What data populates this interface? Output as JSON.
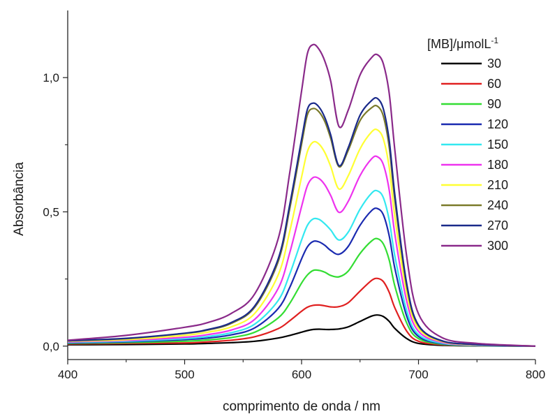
{
  "chart_data": {
    "type": "line",
    "title": "",
    "xlabel": "comprimento de onda / nm",
    "ylabel": "Absorbância",
    "xlim": [
      400,
      800
    ],
    "ylim": [
      -0.05,
      1.25
    ],
    "x_ticks": [
      400,
      500,
      600,
      700,
      800
    ],
    "x_tick_labels": [
      "400",
      "500",
      "600",
      "700",
      "800"
    ],
    "y_ticks": [
      0.0,
      0.5,
      1.0
    ],
    "y_tick_labels": [
      "0,0",
      "0,5",
      "1,0"
    ],
    "grid": false,
    "legend": {
      "title_main": "[MB]/",
      "title_unit": "μmolL",
      "title_sup": "-1",
      "placement": "top-right"
    },
    "x": [
      400,
      450,
      500,
      520,
      540,
      560,
      580,
      590,
      600,
      605,
      610,
      615,
      620,
      625,
      632,
      640,
      650,
      660,
      665,
      670,
      675,
      680,
      690,
      700,
      720,
      750,
      800
    ],
    "series": [
      {
        "name": "30",
        "color": "#000000",
        "values": [
          0.005,
          0.006,
          0.008,
          0.01,
          0.013,
          0.018,
          0.03,
          0.04,
          0.052,
          0.058,
          0.062,
          0.063,
          0.062,
          0.062,
          0.064,
          0.072,
          0.092,
          0.112,
          0.116,
          0.11,
          0.092,
          0.065,
          0.028,
          0.01,
          0.003,
          0.001,
          0.0
        ]
      },
      {
        "name": "60",
        "color": "#e02020",
        "values": [
          0.008,
          0.01,
          0.012,
          0.016,
          0.022,
          0.035,
          0.065,
          0.095,
          0.13,
          0.145,
          0.152,
          0.153,
          0.15,
          0.146,
          0.147,
          0.162,
          0.205,
          0.245,
          0.252,
          0.24,
          0.2,
          0.14,
          0.055,
          0.018,
          0.005,
          0.002,
          0.0
        ]
      },
      {
        "name": "90",
        "color": "#33dd33",
        "values": [
          0.01,
          0.013,
          0.018,
          0.023,
          0.032,
          0.052,
          0.105,
          0.16,
          0.235,
          0.265,
          0.282,
          0.282,
          0.275,
          0.263,
          0.258,
          0.28,
          0.345,
          0.392,
          0.4,
          0.38,
          0.32,
          0.22,
          0.085,
          0.028,
          0.007,
          0.002,
          0.0
        ]
      },
      {
        "name": "120",
        "color": "#1a2ab0",
        "values": [
          0.012,
          0.016,
          0.024,
          0.03,
          0.042,
          0.068,
          0.14,
          0.22,
          0.325,
          0.37,
          0.39,
          0.388,
          0.375,
          0.356,
          0.342,
          0.372,
          0.45,
          0.505,
          0.512,
          0.488,
          0.41,
          0.285,
          0.11,
          0.036,
          0.009,
          0.003,
          0.0
        ]
      },
      {
        "name": "150",
        "color": "#33e8f0",
        "values": [
          0.014,
          0.018,
          0.028,
          0.036,
          0.05,
          0.082,
          0.17,
          0.27,
          0.395,
          0.45,
          0.474,
          0.472,
          0.455,
          0.432,
          0.395,
          0.425,
          0.51,
          0.57,
          0.578,
          0.552,
          0.468,
          0.33,
          0.13,
          0.043,
          0.011,
          0.003,
          0.0
        ]
      },
      {
        "name": "180",
        "color": "#ee33ee",
        "values": [
          0.016,
          0.021,
          0.033,
          0.043,
          0.06,
          0.1,
          0.215,
          0.35,
          0.52,
          0.598,
          0.628,
          0.624,
          0.6,
          0.56,
          0.498,
          0.54,
          0.635,
          0.698,
          0.705,
          0.675,
          0.58,
          0.41,
          0.165,
          0.055,
          0.014,
          0.004,
          0.0
        ]
      },
      {
        "name": "210",
        "color": "#ffff33",
        "values": [
          0.018,
          0.024,
          0.04,
          0.052,
          0.072,
          0.122,
          0.265,
          0.43,
          0.63,
          0.725,
          0.76,
          0.752,
          0.72,
          0.668,
          0.585,
          0.635,
          0.735,
          0.798,
          0.805,
          0.77,
          0.665,
          0.475,
          0.195,
          0.066,
          0.017,
          0.005,
          0.0
        ]
      },
      {
        "name": "240",
        "color": "#7a7a2a",
        "values": [
          0.02,
          0.028,
          0.047,
          0.06,
          0.085,
          0.145,
          0.315,
          0.515,
          0.752,
          0.862,
          0.885,
          0.872,
          0.835,
          0.772,
          0.668,
          0.73,
          0.84,
          0.888,
          0.893,
          0.855,
          0.74,
          0.535,
          0.22,
          0.075,
          0.019,
          0.006,
          0.0
        ]
      },
      {
        "name": "270",
        "color": "#1a2a8a",
        "values": [
          0.02,
          0.029,
          0.048,
          0.062,
          0.088,
          0.15,
          0.325,
          0.53,
          0.77,
          0.882,
          0.905,
          0.89,
          0.85,
          0.785,
          0.672,
          0.74,
          0.86,
          0.915,
          0.922,
          0.882,
          0.765,
          0.555,
          0.23,
          0.078,
          0.02,
          0.006,
          0.0
        ]
      },
      {
        "name": "300",
        "color": "#8a2a8a",
        "values": [
          0.022,
          0.04,
          0.07,
          0.088,
          0.122,
          0.195,
          0.4,
          0.65,
          0.95,
          1.09,
          1.123,
          1.105,
          1.06,
          0.985,
          0.818,
          0.88,
          1.01,
          1.075,
          1.085,
          1.05,
          0.94,
          0.72,
          0.33,
          0.12,
          0.032,
          0.01,
          0.0
        ]
      }
    ]
  }
}
